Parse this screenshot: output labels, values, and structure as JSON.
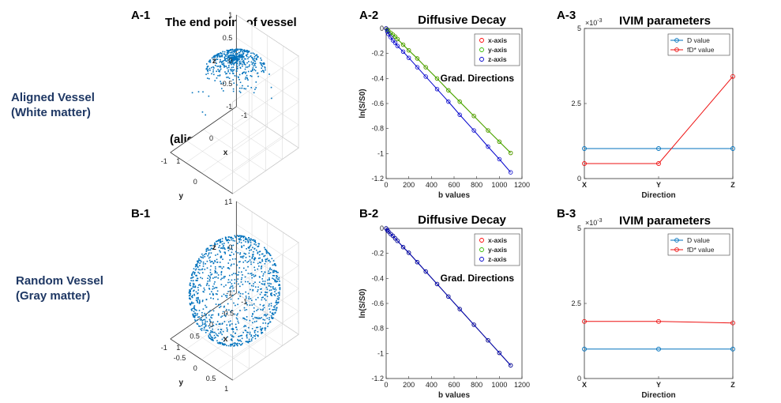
{
  "row_labels": {
    "a_line1": "Aligned Vessel",
    "a_line2": "(White matter)",
    "b_line1": "Random Vessel",
    "b_line2": "(Gray matter)"
  },
  "panels": {
    "A1": "A-1",
    "A2": "A-2",
    "A3": "A-3",
    "B1": "B-1",
    "B2": "B-2",
    "B3": "B-3"
  },
  "colors": {
    "row_label": "#1f3864",
    "scatter": "#0072bd",
    "x_axis": "#ff0000",
    "y_axis": "#33bb00",
    "z_axis": "#0000cc",
    "d_value": "#0072bd",
    "fdstar_value": "#ee1111"
  },
  "chart_data": [
    {
      "id": "A1",
      "type": "scatter",
      "dims": 3,
      "title": "The end point of vessel",
      "annotation": "(aligned to z direction)",
      "xlabel": "x",
      "ylabel": "y",
      "zlabel": "z",
      "xlim": [
        -1,
        1
      ],
      "ylim": [
        -1,
        1
      ],
      "zlim": [
        -1,
        1
      ],
      "x_ticks": [
        "-1",
        "0",
        "1"
      ],
      "y_ticks": [
        "-1",
        "0",
        "1"
      ],
      "z_ticks": [
        "-1",
        "-0.5",
        "0",
        "0.5",
        "1"
      ],
      "distribution": "points clustered near z = 1 (aligned to z direction)",
      "grid": true
    },
    {
      "id": "A2",
      "type": "line",
      "title": "Diffusive Decay",
      "xlabel": "b values",
      "ylabel": "ln(S/S0)",
      "xlim": [
        0,
        1200
      ],
      "ylim": [
        -1.2,
        0
      ],
      "x_ticks": [
        "0",
        "200",
        "400",
        "600",
        "800",
        "1000",
        "1200"
      ],
      "y_ticks": [
        "0",
        "-0.2",
        "-0.4",
        "-0.6",
        "-0.8",
        "-1",
        "-1.2"
      ],
      "legend_title": "Grad. Directions",
      "legend_position": "top-right",
      "x": [
        0,
        10,
        20,
        40,
        60,
        80,
        100,
        150,
        200,
        275,
        350,
        450,
        550,
        650,
        775,
        900,
        1000,
        1100
      ],
      "series": [
        {
          "name": "x-axis",
          "values": [
            0,
            -0.01,
            -0.02,
            -0.035,
            -0.05,
            -0.065,
            -0.085,
            -0.13,
            -0.175,
            -0.24,
            -0.31,
            -0.4,
            -0.495,
            -0.585,
            -0.7,
            -0.815,
            -0.905,
            -0.995
          ]
        },
        {
          "name": "y-axis",
          "values": [
            0,
            -0.01,
            -0.02,
            -0.035,
            -0.05,
            -0.065,
            -0.085,
            -0.13,
            -0.175,
            -0.24,
            -0.31,
            -0.4,
            -0.495,
            -0.585,
            -0.7,
            -0.815,
            -0.905,
            -0.995
          ]
        },
        {
          "name": "z-axis",
          "values": [
            0,
            -0.025,
            -0.045,
            -0.07,
            -0.095,
            -0.115,
            -0.14,
            -0.185,
            -0.235,
            -0.31,
            -0.385,
            -0.485,
            -0.585,
            -0.69,
            -0.815,
            -0.945,
            -1.045,
            -1.15
          ]
        }
      ]
    },
    {
      "id": "A3",
      "type": "line",
      "title": "IVIM parameters",
      "xlabel": "Direction",
      "categories": [
        "X",
        "Y",
        "Z"
      ],
      "ylim": [
        0,
        0.005
      ],
      "y_ticks": [
        "0",
        "2.5",
        "5"
      ],
      "y_exponent": "×10",
      "y_exponent_power": "-3",
      "legend_position": "top-right",
      "series": [
        {
          "name": "D value",
          "values": [
            0.001,
            0.001,
            0.001
          ]
        },
        {
          "name": "fD* value",
          "values": [
            0.0005,
            0.0005,
            0.0034
          ]
        }
      ]
    },
    {
      "id": "B1",
      "type": "scatter",
      "dims": 3,
      "xlabel": "x",
      "ylabel": "y",
      "zlabel": "z",
      "xlim": [
        -1,
        1
      ],
      "ylim": [
        -1,
        1
      ],
      "zlim": [
        -1,
        1
      ],
      "x_ticks": [
        "-1",
        "-0.5",
        "0",
        "0.5",
        "1"
      ],
      "y_ticks": [
        "-1",
        "-0.5",
        "0",
        "0.5",
        "1"
      ],
      "z_ticks": [
        "-1",
        "0",
        "1"
      ],
      "distribution": "points uniformly distributed on the unit sphere (random directions)",
      "grid": true
    },
    {
      "id": "B2",
      "type": "line",
      "title": "Diffusive Decay",
      "xlabel": "b values",
      "ylabel": "ln(S/S0)",
      "xlim": [
        0,
        1200
      ],
      "ylim": [
        -1.2,
        0
      ],
      "x_ticks": [
        "0",
        "200",
        "400",
        "600",
        "800",
        "1000",
        "1200"
      ],
      "y_ticks": [
        "0",
        "-0.2",
        "-0.4",
        "-0.6",
        "-0.8",
        "-1",
        "-1.2"
      ],
      "legend_title": "Grad. Directions",
      "legend_position": "top-right",
      "x": [
        0,
        10,
        20,
        40,
        60,
        80,
        100,
        150,
        200,
        275,
        350,
        450,
        550,
        650,
        775,
        900,
        1000,
        1100
      ],
      "series": [
        {
          "name": "x-axis",
          "values": [
            0,
            -0.015,
            -0.025,
            -0.045,
            -0.06,
            -0.08,
            -0.1,
            -0.15,
            -0.195,
            -0.27,
            -0.345,
            -0.445,
            -0.545,
            -0.645,
            -0.77,
            -0.895,
            -0.995,
            -1.095
          ]
        },
        {
          "name": "y-axis",
          "values": [
            0,
            -0.015,
            -0.025,
            -0.045,
            -0.06,
            -0.08,
            -0.1,
            -0.15,
            -0.195,
            -0.27,
            -0.345,
            -0.445,
            -0.545,
            -0.645,
            -0.77,
            -0.895,
            -0.995,
            -1.095
          ]
        },
        {
          "name": "z-axis",
          "values": [
            0,
            -0.015,
            -0.025,
            -0.045,
            -0.06,
            -0.08,
            -0.1,
            -0.15,
            -0.195,
            -0.27,
            -0.345,
            -0.445,
            -0.545,
            -0.645,
            -0.77,
            -0.895,
            -0.995,
            -1.095
          ]
        }
      ]
    },
    {
      "id": "B3",
      "type": "line",
      "title": "IVIM parameters",
      "xlabel": "Direction",
      "categories": [
        "X",
        "Y",
        "Z"
      ],
      "ylim": [
        0,
        0.005
      ],
      "y_ticks": [
        "0",
        "2.5",
        "5"
      ],
      "y_exponent": "×10",
      "y_exponent_power": "-3",
      "legend_position": "top-right",
      "series": [
        {
          "name": "D value",
          "values": [
            0.00098,
            0.00098,
            0.00098
          ]
        },
        {
          "name": "fD* value",
          "values": [
            0.0019,
            0.0019,
            0.00185
          ]
        }
      ]
    }
  ]
}
